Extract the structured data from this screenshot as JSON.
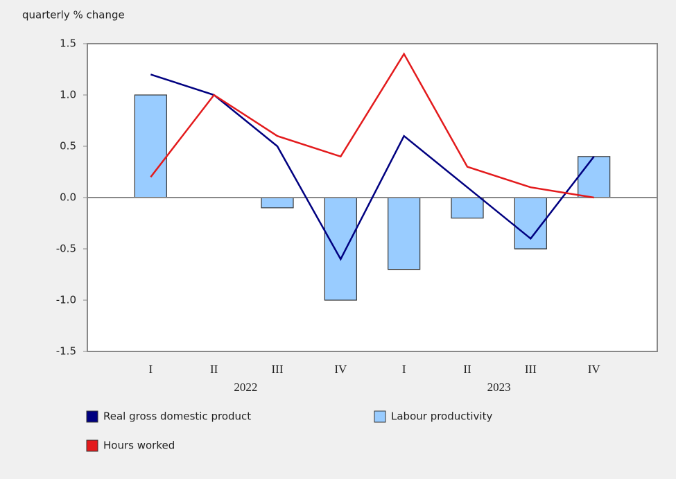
{
  "chart_data": {
    "type": "combo",
    "y_axis_label": "quarterly % change",
    "categories": [
      "I",
      "II",
      "III",
      "IV",
      "I",
      "II",
      "III",
      "IV"
    ],
    "x_groups": [
      "2022",
      "2023"
    ],
    "series": [
      {
        "name": "Real gross domestic product",
        "type": "line",
        "color": "#000080",
        "values": [
          1.2,
          1.0,
          0.5,
          -0.6,
          0.6,
          0.1,
          -0.4,
          0.4
        ]
      },
      {
        "name": "Labour productivity",
        "type": "bar",
        "color": "#99ccff",
        "values": [
          1.0,
          0.0,
          -0.1,
          -1.0,
          -0.7,
          -0.2,
          -0.5,
          0.4
        ]
      },
      {
        "name": "Hours worked",
        "type": "line",
        "color": "#e31a1c",
        "values": [
          0.2,
          1.0,
          0.6,
          0.4,
          1.4,
          0.3,
          0.1,
          0.0
        ]
      }
    ],
    "ylim": [
      -1.5,
      1.5
    ],
    "yticks": [
      -1.5,
      {
        "value": -1,
        "label": "-1.0"
      },
      -0.5,
      {
        "value": 0,
        "label": "0.0"
      },
      0.5,
      {
        "value": 1,
        "label": "1.0"
      },
      1.5
    ]
  }
}
